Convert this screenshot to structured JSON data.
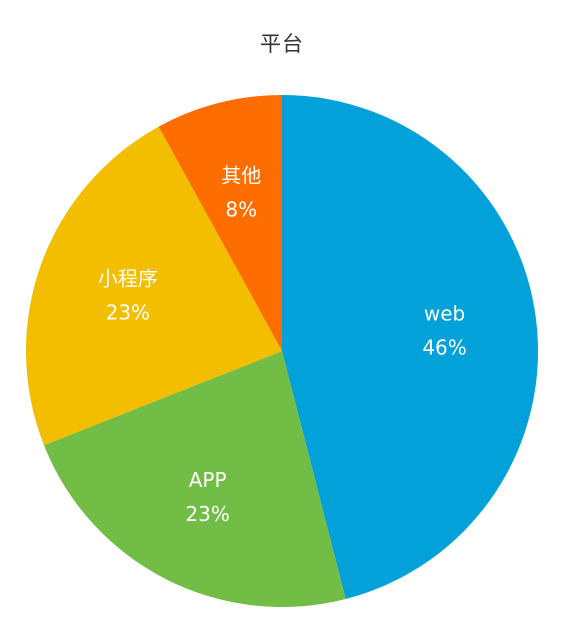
{
  "chart_data": {
    "type": "pie",
    "title": "平台",
    "slices": [
      {
        "label": "web",
        "value": 46,
        "percent_label": "46%",
        "color": "#02a1d9"
      },
      {
        "label": "APP",
        "value": 23,
        "percent_label": "23%",
        "color": "#72bd45"
      },
      {
        "label": "小程序",
        "value": 23,
        "percent_label": "23%",
        "color": "#f4be00"
      },
      {
        "label": "其他",
        "value": 8,
        "percent_label": "8%",
        "color": "#fd6d00"
      }
    ],
    "start": "top",
    "direction": "clockwise",
    "labels_inside": true
  }
}
